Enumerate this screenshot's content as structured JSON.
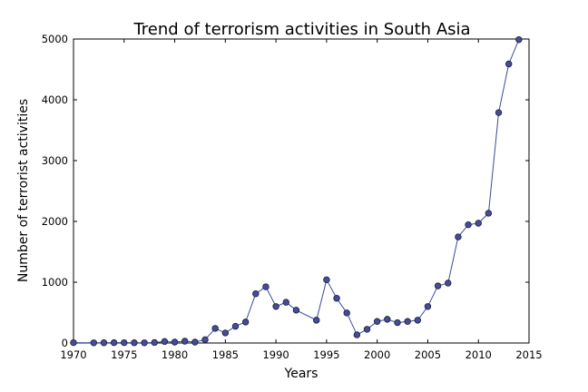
{
  "chart_data": {
    "type": "line",
    "title": "Trend of terrorism activities in South Asia",
    "xlabel": "Years",
    "ylabel": "Number of terrorist activities",
    "xlim": [
      1970,
      2015
    ],
    "ylim": [
      0,
      5000
    ],
    "xticks": [
      1970,
      1975,
      1980,
      1985,
      1990,
      1995,
      2000,
      2005,
      2010,
      2015
    ],
    "yticks": [
      0,
      1000,
      2000,
      3000,
      4000,
      5000
    ],
    "grid": false,
    "colors": {
      "line": "#3a4a9a",
      "marker": "#464c96"
    },
    "series": [
      {
        "x": [
          1970,
          1972,
          1973,
          1974,
          1975,
          1976,
          1977,
          1978,
          1979,
          1980,
          1981,
          1982,
          1983,
          1984,
          1985,
          1986,
          1987,
          1988,
          1989,
          1990,
          1991,
          1992,
          1994,
          1995,
          1996,
          1997,
          1998,
          1999,
          2000,
          2001,
          2002,
          2003,
          2004,
          2005,
          2006,
          2007,
          2008,
          2009,
          2010,
          2011,
          2012,
          2013,
          2014
        ],
        "y": [
          5,
          3,
          4,
          6,
          5,
          4,
          3,
          8,
          25,
          15,
          30,
          15,
          55,
          240,
          165,
          275,
          345,
          810,
          925,
          600,
          670,
          540,
          375,
          1040,
          735,
          495,
          135,
          225,
          355,
          390,
          335,
          355,
          375,
          600,
          940,
          985,
          1745,
          1945,
          1970,
          2135,
          3790,
          4590,
          4990
        ]
      }
    ]
  }
}
